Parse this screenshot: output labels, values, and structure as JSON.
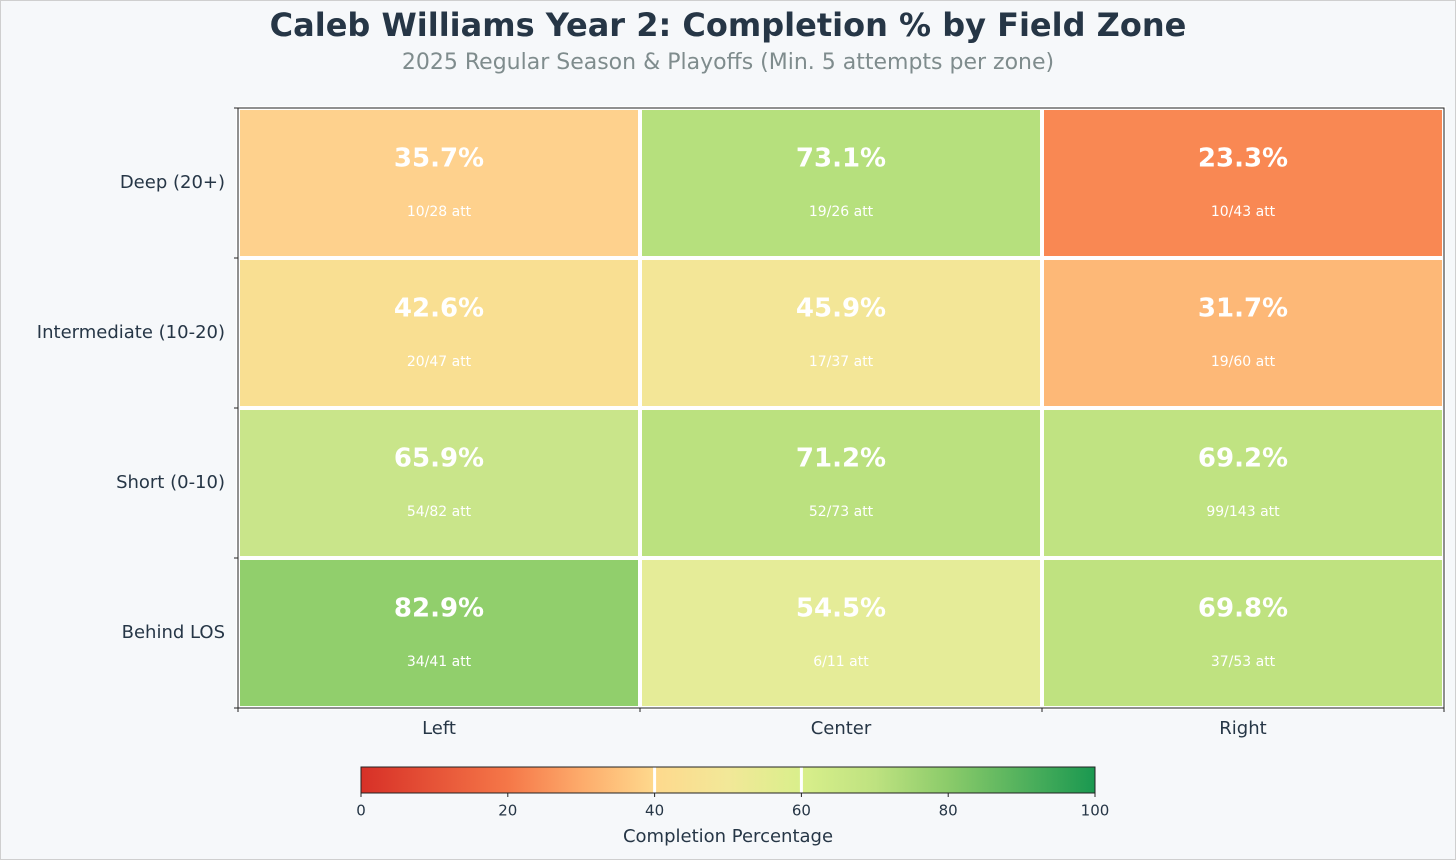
{
  "chart_data": {
    "type": "heatmap",
    "title": "Caleb Williams Year 2: Completion % by Field Zone",
    "subtitle": "2025 Regular Season & Playoffs (Min. 5 attempts per zone)",
    "x_categories": [
      "Left",
      "Center",
      "Right"
    ],
    "y_categories": [
      "Deep (20+)",
      "Intermediate (10-20)",
      "Short (0-10)",
      "Behind LOS"
    ],
    "values": [
      [
        35.7,
        73.1,
        23.3
      ],
      [
        42.6,
        45.9,
        31.7
      ],
      [
        65.9,
        71.2,
        69.2
      ],
      [
        82.9,
        54.5,
        69.8
      ]
    ],
    "value_labels": [
      [
        "35.7%",
        "73.1%",
        "23.3%"
      ],
      [
        "42.6%",
        "45.9%",
        "31.7%"
      ],
      [
        "65.9%",
        "71.2%",
        "69.2%"
      ],
      [
        "82.9%",
        "54.5%",
        "69.8%"
      ]
    ],
    "attempt_labels": [
      [
        "10/28 att",
        "19/26 att",
        "10/43 att"
      ],
      [
        "20/47 att",
        "17/37 att",
        "19/60 att"
      ],
      [
        "54/82 att",
        "52/73 att",
        "99/143 att"
      ],
      [
        "34/41 att",
        "6/11 att",
        "37/53 att"
      ]
    ],
    "colorbar": {
      "label": "Completion Percentage",
      "range": [
        0,
        100
      ],
      "ticks": [
        0,
        20,
        40,
        60,
        80,
        100
      ],
      "tick_labels": [
        "0",
        "20",
        "40",
        "60",
        "80",
        "100"
      ],
      "markers": [
        40,
        60
      ],
      "colormap": "RdYlGn (light)"
    }
  },
  "colors": {
    "title": "#263646",
    "subtitle": "#7f8c8d",
    "background": "#f6f8fa",
    "cell_text": "#ffffff"
  }
}
